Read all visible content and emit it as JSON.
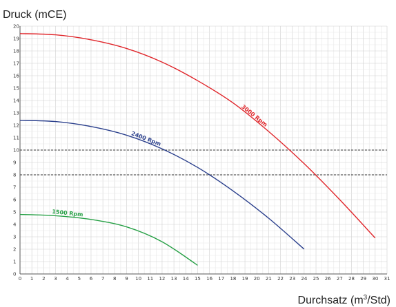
{
  "chart_data": {
    "type": "line",
    "ylabel": "Druck (mCE)",
    "xlabel_prefix": "Durchsatz (m",
    "xlabel_sup": "3",
    "xlabel_suffix": "/Std)",
    "xlim": [
      0,
      31
    ],
    "ylim": [
      0,
      20
    ],
    "x_ticks": [
      0,
      1,
      2,
      3,
      4,
      5,
      6,
      7,
      8,
      9,
      10,
      11,
      12,
      13,
      14,
      15,
      16,
      17,
      18,
      19,
      20,
      21,
      22,
      23,
      24,
      25,
      26,
      27,
      28,
      29,
      30,
      31
    ],
    "y_ticks": [
      0,
      1,
      2,
      3,
      4,
      5,
      6,
      7,
      8,
      9,
      10,
      11,
      12,
      13,
      14,
      15,
      16,
      17,
      18,
      19,
      20
    ],
    "grid": true,
    "reference_lines": [
      {
        "y": 10,
        "style": "dashed"
      },
      {
        "y": 8,
        "style": "dashed"
      }
    ],
    "series": [
      {
        "name": "3000 Rpm",
        "color": "#e0262b",
        "x": [
          0,
          3,
          6,
          9,
          12,
          15,
          18,
          21,
          24,
          27,
          30
        ],
        "y": [
          19.4,
          19.3,
          18.9,
          18.2,
          17.1,
          15.6,
          13.8,
          11.5,
          8.9,
          6.0,
          2.9
        ],
        "label_at": 19.7
      },
      {
        "name": "2400 Rpm",
        "color": "#2a3f8c",
        "x": [
          0,
          3,
          6,
          9,
          12,
          15,
          18,
          21,
          24
        ],
        "y": [
          12.4,
          12.3,
          11.9,
          11.2,
          10.1,
          8.6,
          6.7,
          4.5,
          2.0
        ],
        "label_at": 10.6
      },
      {
        "name": "1500 Rpm",
        "color": "#27a046",
        "x": [
          0,
          3,
          6,
          9,
          12,
          15
        ],
        "y": [
          4.8,
          4.7,
          4.4,
          3.8,
          2.6,
          0.7
        ],
        "label_at": 4.0
      }
    ]
  }
}
